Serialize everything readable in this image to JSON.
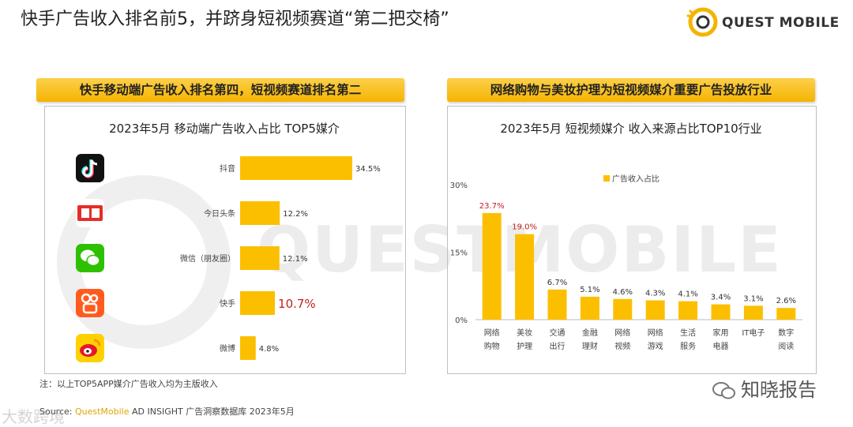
{
  "header": {
    "title": "快手广告收入排名前5，并跻身短视频赛道“第二把交椅”",
    "logo_text": "QUEST MOBILE"
  },
  "watermark_text": "QUESTMOBILE",
  "left_panel": {
    "banner": "快手移动端广告收入排名第四，短视频赛道排名第二"
  },
  "right_panel": {
    "banner": "网络购物与美妆护理为短视频媒介重要广告投放行业"
  },
  "chart_data": [
    {
      "type": "bar",
      "orientation": "horizontal",
      "title": "2023年5月 移动端广告收入占比 TOP5媒介",
      "categories": [
        "抖音",
        "今日头条",
        "微信（朋友圈）",
        "快手",
        "微博"
      ],
      "values": [
        34.5,
        12.2,
        12.1,
        10.7,
        4.8
      ],
      "value_labels": [
        "34.5%",
        "12.2%",
        "12.1%",
        "10.7%",
        "4.8%"
      ],
      "highlight": "快手",
      "icons": [
        "douyin-app-icon",
        "toutiao-app-icon",
        "wechat-app-icon",
        "kuaishou-app-icon",
        "weibo-app-icon"
      ],
      "colors": {
        "bar": "#fcbf00",
        "highlight_label": "#c0201c"
      },
      "xlim": [
        0,
        34.5
      ]
    },
    {
      "type": "bar",
      "title": "2023年5月 短视频媒介 收入来源占比TOP10行业",
      "legend": {
        "label": "广告收入占比",
        "placement": "top-center"
      },
      "categories": [
        "网络购物",
        "美妆护理",
        "交通出行",
        "金融理财",
        "网络视频",
        "网络游戏",
        "生活服务",
        "家用电器",
        "IT电子",
        "数字阅读"
      ],
      "category_lines": [
        [
          "网络",
          "购物"
        ],
        [
          "美妆",
          "护理"
        ],
        [
          "交通",
          "出行"
        ],
        [
          "金融",
          "理财"
        ],
        [
          "网络",
          "视频"
        ],
        [
          "网络",
          "游戏"
        ],
        [
          "生活",
          "服务"
        ],
        [
          "家用",
          "电器"
        ],
        [
          "IT电子",
          ""
        ],
        [
          "数字",
          "阅读"
        ]
      ],
      "values": [
        23.7,
        19.0,
        6.7,
        5.1,
        4.6,
        4.3,
        4.1,
        3.4,
        3.1,
        2.6
      ],
      "value_labels": [
        "23.7%",
        "19.0%",
        "6.7%",
        "5.1%",
        "4.6%",
        "4.3%",
        "4.1%",
        "3.4%",
        "3.1%",
        "2.6%"
      ],
      "highlight_labels": [
        0,
        1
      ],
      "yticks": [
        "30%",
        "15%",
        "0%"
      ],
      "ylim": [
        0,
        30
      ],
      "colors": {
        "bar": "#fcbf00",
        "highlight_label": "#c0201c"
      }
    }
  ],
  "footer": {
    "note": "注：以上TOP5APP媒介广告收入均为主版收入",
    "source_prefix": "Source: ",
    "source_brand": "QuestMobile",
    "source_rest": " AD INSIGHT 广告洞察数据库 2023年5月",
    "wechat_account": "知晓报告",
    "corner_watermark": "大数跨境"
  }
}
